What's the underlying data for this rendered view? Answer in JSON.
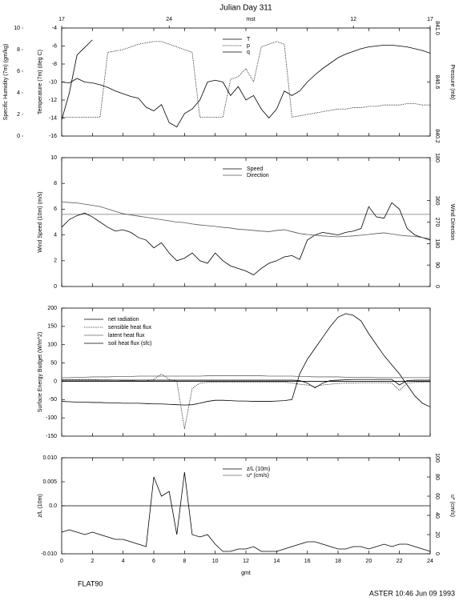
{
  "title": "Julian Day 311",
  "top_axis": {
    "label": "mst",
    "ticks": [
      {
        "value": 0,
        "label": "17"
      },
      {
        "value": 7,
        "label": "24"
      },
      {
        "value": 19,
        "label": "12"
      },
      {
        "value": 24,
        "label": "17"
      }
    ]
  },
  "footer": {
    "left": "FLAT90",
    "right": "ASTER 10:46 Jun 09 1993"
  },
  "chart_data": [
    {
      "type": "line",
      "legend": "top center",
      "x": [
        0,
        0.5,
        1,
        1.5,
        2,
        2.5,
        3,
        3.5,
        4,
        4.5,
        5,
        5.5,
        6,
        6.5,
        7,
        7.5,
        8,
        8.5,
        9,
        9.5,
        10,
        10.5,
        11,
        11.5,
        12,
        12.5,
        13,
        13.5,
        14,
        14.5,
        15,
        15.5,
        16,
        16.5,
        17,
        17.5,
        18,
        18.5,
        19,
        19.5,
        20,
        20.5,
        21,
        21.5,
        22,
        22.5,
        23,
        23.5,
        24
      ],
      "xlim": [
        0,
        24
      ],
      "xticks": [
        0,
        2,
        4,
        6,
        8,
        10,
        12,
        14,
        16,
        18,
        20,
        22,
        24
      ],
      "ylabel": "Temperature (7m) (deg C)",
      "ylim": [
        -16,
        -4
      ],
      "yticks": [
        -4,
        -6,
        -8,
        -10,
        -12,
        -14,
        -16
      ],
      "y2label": "Pressure (mb)",
      "y2lim": [
        840.2,
        841
      ],
      "y2ticks": [
        840.2,
        840.6,
        {
          "value": 841,
          "label": "841.0"
        }
      ],
      "y3label": "Specific Humidity (7m) (gm/kg)",
      "y3lim": [
        0,
        10
      ],
      "y3ticks": [
        0,
        2,
        4,
        6,
        8,
        10
      ],
      "series": [
        {
          "name": "T",
          "color": "#000000",
          "axis": "y",
          "values": [
            -10.0,
            -10.1,
            -9.6,
            -10.0,
            -10.1,
            -10.3,
            -10.6,
            -11.0,
            -11.3,
            -11.6,
            -11.8,
            -12.8,
            -13.2,
            -12.5,
            -14.5,
            -15.0,
            -13.5,
            -13.0,
            -12.0,
            -10.0,
            -9.8,
            -10.0,
            -11.5,
            -10.5,
            -12.0,
            -11.5,
            -13.0,
            -14.0,
            -13.0,
            -11.0,
            -11.5,
            -11.0,
            -10.0,
            -9.2,
            -8.5,
            -7.9,
            -7.3,
            -6.9,
            -6.6,
            -6.3,
            -6.1,
            -6.0,
            -5.9,
            -5.9,
            -6.0,
            -6.1,
            -6.3,
            -6.5,
            -6.8
          ]
        },
        {
          "name": "p",
          "color": "#000000",
          "axis": "y2",
          "dash": "dotted",
          "values": [
            840.34,
            840.34,
            840.34,
            840.34,
            840.34,
            840.34,
            840.82,
            840.83,
            840.84,
            840.86,
            840.88,
            840.89,
            840.9,
            840.9,
            840.88,
            840.86,
            840.84,
            840.82,
            840.34,
            840.34,
            840.34,
            840.34,
            840.62,
            840.64,
            840.7,
            840.6,
            840.86,
            840.88,
            840.9,
            840.88,
            840.34,
            840.35,
            840.36,
            840.37,
            840.38,
            840.39,
            840.4,
            840.4,
            840.41,
            840.41,
            840.42,
            840.42,
            840.43,
            840.43,
            840.43,
            840.44,
            840.44,
            840.43,
            840.43
          ]
        },
        {
          "name": "q",
          "color": "#000000",
          "axis": "y3",
          "values": [
            1.5,
            4.0,
            7.5,
            8.2,
            8.9,
            null,
            null,
            null,
            null,
            null,
            null,
            null,
            null,
            null,
            null,
            null,
            null,
            null,
            null,
            null,
            null,
            null,
            null,
            null,
            null,
            null,
            null,
            null,
            null,
            null,
            null,
            null,
            null,
            null,
            null,
            null,
            null,
            null,
            null,
            null,
            null,
            null,
            null,
            null,
            null,
            null,
            null,
            null,
            null
          ]
        }
      ]
    },
    {
      "type": "line",
      "legend": "top center",
      "x": [
        0,
        0.5,
        1,
        1.5,
        2,
        2.5,
        3,
        3.5,
        4,
        4.5,
        5,
        5.5,
        6,
        6.5,
        7,
        7.5,
        8,
        8.5,
        9,
        9.5,
        10,
        10.5,
        11,
        11.5,
        12,
        12.5,
        13,
        13.5,
        14,
        14.5,
        15,
        15.5,
        16,
        16.5,
        17,
        17.5,
        18,
        18.5,
        19,
        19.5,
        20,
        20.5,
        21,
        21.5,
        22,
        22.5,
        23,
        23.5,
        24
      ],
      "xlim": [
        0,
        24
      ],
      "xticks": [
        0,
        2,
        4,
        6,
        8,
        10,
        12,
        14,
        16,
        18,
        20,
        22,
        24
      ],
      "ylabel": "Wind Speed (10m) (m/s)",
      "ylim": [
        0,
        10
      ],
      "yticks": [
        0,
        2,
        4,
        6,
        8,
        10
      ],
      "y2label": "Wind Direction",
      "y2lim": [
        0,
        540
      ],
      "y2ticks": [
        0,
        90,
        180,
        270,
        360,
        {
          "value": 540,
          "label": "180"
        }
      ],
      "reference_line": 5.6,
      "series": [
        {
          "name": "Speed",
          "color": "#000000",
          "axis": "y",
          "values": [
            4.6,
            5.2,
            5.5,
            5.7,
            5.4,
            5.0,
            4.6,
            4.3,
            4.4,
            4.2,
            3.8,
            3.6,
            3.0,
            3.4,
            2.6,
            2.0,
            2.2,
            2.6,
            2.0,
            1.8,
            2.6,
            2.0,
            1.6,
            1.4,
            1.2,
            0.9,
            1.4,
            1.8,
            2.0,
            2.3,
            2.4,
            2.1,
            3.6,
            4.0,
            4.2,
            4.1,
            4.0,
            4.2,
            4.3,
            4.5,
            6.2,
            5.4,
            5.3,
            6.5,
            6.0,
            4.5,
            4.0,
            3.8,
            3.6
          ]
        },
        {
          "name": "Direction",
          "color": "#555555",
          "axis": "y2",
          "values": [
            355,
            352,
            350,
            345,
            340,
            335,
            325,
            315,
            305,
            300,
            295,
            290,
            285,
            280,
            275,
            270,
            268,
            262,
            258,
            255,
            252,
            248,
            245,
            240,
            238,
            235,
            232,
            230,
            235,
            238,
            230,
            222,
            218,
            215,
            212,
            210,
            208,
            210,
            212,
            215,
            218,
            222,
            225,
            220,
            215,
            212,
            210,
            205,
            200
          ]
        }
      ]
    },
    {
      "type": "line",
      "legend": "top left",
      "zero_line": true,
      "x": [
        0,
        0.5,
        1,
        1.5,
        2,
        2.5,
        3,
        3.5,
        4,
        4.5,
        5,
        5.5,
        6,
        6.5,
        7,
        7.5,
        8,
        8.5,
        9,
        9.5,
        10,
        10.5,
        11,
        11.5,
        12,
        12.5,
        13,
        13.5,
        14,
        14.5,
        15,
        15.5,
        16,
        16.5,
        17,
        17.5,
        18,
        18.5,
        19,
        19.5,
        20,
        20.5,
        21,
        21.5,
        22,
        22.5,
        23,
        23.5,
        24
      ],
      "xlim": [
        0,
        24
      ],
      "xticks": [
        0,
        2,
        4,
        6,
        8,
        10,
        12,
        14,
        16,
        18,
        20,
        22,
        24
      ],
      "ylabel": "Surface Energy Budget (W/m^2)",
      "ylim": [
        -150,
        200
      ],
      "yticks": [
        200,
        150,
        100,
        50,
        0,
        -50,
        -100,
        -150
      ],
      "series": [
        {
          "name": "net radiation",
          "color": "#000000",
          "axis": "y",
          "values": [
            -55,
            -56,
            -57,
            -57,
            -58,
            -58,
            -59,
            -59,
            -60,
            -60,
            -60,
            -61,
            -62,
            -62,
            -63,
            -64,
            -65,
            -64,
            -60,
            -55,
            -52,
            -52,
            -53,
            -54,
            -54,
            -55,
            -55,
            -55,
            -54,
            -53,
            -50,
            20,
            60,
            90,
            120,
            150,
            175,
            185,
            180,
            165,
            130,
            100,
            70,
            45,
            20,
            -10,
            -40,
            -60,
            -70
          ]
        },
        {
          "name": "sensible heat flux",
          "color": "#000000",
          "axis": "y",
          "dash": "dotted",
          "values": [
            5,
            5,
            5,
            5,
            5,
            4,
            4,
            3,
            2,
            2,
            0,
            0,
            5,
            20,
            5,
            0,
            -130,
            -20,
            -5,
            -3,
            -2,
            -2,
            -2,
            -2,
            -2,
            -2,
            -2,
            -2,
            -2,
            -2,
            -5,
            -8,
            -10,
            -15,
            -10,
            -8,
            -6,
            -5,
            -5,
            -4,
            -4,
            -4,
            -4,
            -5,
            -25,
            -5,
            -3,
            -2,
            -2
          ]
        },
        {
          "name": "latent heat flux",
          "color": "#666666",
          "axis": "y",
          "values": [
            10,
            10,
            11,
            11,
            12,
            12,
            12,
            13,
            13,
            13,
            14,
            14,
            14,
            14,
            14,
            14,
            14,
            14,
            14,
            15,
            15,
            15,
            15,
            15,
            15,
            15,
            15,
            14,
            14,
            14,
            14,
            13,
            13,
            12,
            12,
            12,
            12,
            11,
            11,
            11,
            11,
            10,
            10,
            10,
            10,
            10,
            10,
            10,
            10
          ]
        },
        {
          "name": "soil heat flux (sfc)",
          "color": "#000000",
          "axis": "y",
          "values": [
            3,
            3,
            3,
            3,
            3,
            3,
            3,
            3,
            3,
            3,
            3,
            3,
            3,
            3,
            3,
            3,
            3,
            3,
            3,
            3,
            3,
            3,
            3,
            3,
            3,
            3,
            3,
            3,
            3,
            3,
            3,
            2,
            -5,
            -18,
            -5,
            2,
            3,
            4,
            5,
            5,
            5,
            5,
            5,
            5,
            -10,
            2,
            3,
            3,
            3
          ]
        }
      ]
    },
    {
      "type": "line",
      "legend": "top center",
      "zero_line": true,
      "x": [
        0,
        0.5,
        1,
        1.5,
        2,
        2.5,
        3,
        3.5,
        4,
        4.5,
        5,
        5.5,
        6,
        6.5,
        7,
        7.5,
        8,
        8.5,
        9,
        9.5,
        10,
        10.5,
        11,
        11.5,
        12,
        12.5,
        13,
        13.5,
        14,
        14.5,
        15,
        15.5,
        16,
        16.5,
        17,
        17.5,
        18,
        18.5,
        19,
        19.5,
        20,
        20.5,
        21,
        21.5,
        22,
        22.5,
        23,
        23.5,
        24
      ],
      "xlim": [
        0,
        24
      ],
      "xticks": [
        0,
        2,
        4,
        6,
        8,
        10,
        12,
        14,
        16,
        18,
        20,
        22,
        24
      ],
      "xlabel": "gmt",
      "ylabel": "z/L (10m)",
      "ylim": [
        -0.01,
        0.01
      ],
      "yticks": [
        {
          "value": 0.01,
          "label": "0.010"
        },
        0.005,
        {
          "value": 0,
          "label": "0.0"
        },
        {
          "value": -0.01,
          "label": "-0.010"
        }
      ],
      "y2label": "u* (cm/s)",
      "y2lim": [
        0,
        100
      ],
      "y2ticks": [
        0,
        20,
        40,
        60,
        80,
        100
      ],
      "series": [
        {
          "name": "z/L (10m)",
          "color": "#000000",
          "axis": "y",
          "values": [
            -0.0055,
            -0.005,
            -0.0055,
            -0.006,
            -0.0055,
            -0.006,
            -0.0065,
            -0.007,
            -0.007,
            -0.0075,
            -0.008,
            -0.0085,
            0.006,
            0.002,
            0.003,
            -0.006,
            0.007,
            -0.006,
            -0.0065,
            -0.006,
            -0.008,
            -0.0095,
            -0.0095,
            -0.009,
            -0.009,
            -0.0085,
            -0.0095,
            -0.0095,
            -0.0095,
            -0.009,
            -0.0085,
            -0.008,
            -0.0075,
            -0.0075,
            -0.008,
            -0.0085,
            -0.009,
            -0.009,
            -0.0085,
            -0.0085,
            -0.009,
            -0.0085,
            -0.008,
            -0.0085,
            -0.008,
            -0.008,
            -0.0085,
            -0.009,
            -0.0095
          ]
        },
        {
          "name": "u* (cm/s)",
          "color": "#666666",
          "axis": "y2",
          "values": [
            null,
            null,
            null,
            null,
            null,
            null,
            null,
            null,
            null,
            null,
            null,
            null,
            null,
            null,
            null,
            null,
            null,
            null,
            null,
            null,
            null,
            null,
            null,
            null,
            null,
            null,
            null,
            null,
            null,
            null,
            null,
            null,
            null,
            null,
            null,
            null,
            null,
            null,
            null,
            null,
            null,
            null,
            null,
            null,
            null,
            null,
            null,
            null,
            null
          ]
        }
      ]
    }
  ]
}
